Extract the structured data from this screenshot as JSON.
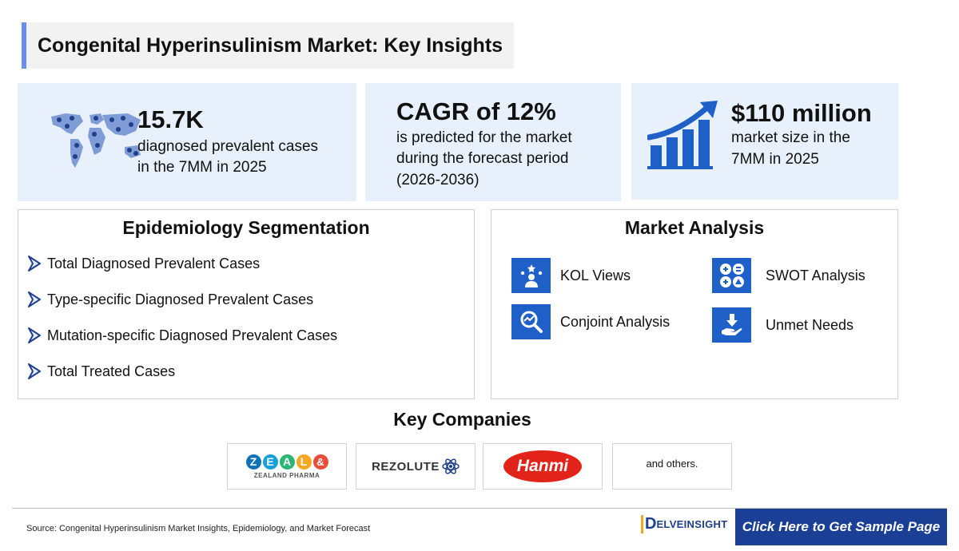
{
  "title": "Congenital Hyperinsulinism Market: Key Insights",
  "stats": [
    {
      "value": "15.7K",
      "line1": "diagnosed prevalent cases",
      "line2": "in the 7MM in 2025",
      "icon": "world-map-people-icon"
    },
    {
      "value": "CAGR of 12%",
      "line1": "is predicted for the market",
      "line2": "during the forecast period",
      "line3": "(2026-2036)"
    },
    {
      "value": "$110 million",
      "line1": "market size in the",
      "line2": "7MM in 2025",
      "icon": "growth-bar-chart-icon"
    }
  ],
  "epidemiology": {
    "title": "Epidemiology Segmentation",
    "items": [
      "Total Diagnosed Prevalent Cases",
      "Type-specific Diagnosed Prevalent Cases",
      "Mutation-specific Diagnosed Prevalent Cases",
      "Total Treated Cases"
    ]
  },
  "market_analysis": {
    "title": "Market Analysis",
    "items": [
      {
        "label": "KOL Views",
        "icon": "kol-person-stars-icon"
      },
      {
        "label": "SWOT Analysis",
        "icon": "swot-grid-icon"
      },
      {
        "label": "Conjoint Analysis",
        "icon": "magnifier-chart-icon"
      },
      {
        "label": "Unmet Needs",
        "icon": "hand-download-icon"
      }
    ]
  },
  "key_companies": {
    "title": "Key Companies",
    "zealand": {
      "letters": [
        "Z",
        "E",
        "A",
        "L",
        "&"
      ],
      "sub": "ZEALAND PHARMA"
    },
    "rezolute": "REZOLUTE",
    "hanmi": "Hanmi",
    "others": "and others."
  },
  "footer": {
    "source": "Source: Congenital Hyperinsulinism Market Insights, Epidemiology, and Market Forecast",
    "brand": "ELVEINSIGHT",
    "brand_initial": "D",
    "cta": "Click Here to Get Sample Page"
  },
  "colors": {
    "accent": "#1f5fc8",
    "cta_bg": "#1b3f94",
    "stat_bg": "#e8f1fb",
    "hanmi_red": "#e2231a"
  }
}
